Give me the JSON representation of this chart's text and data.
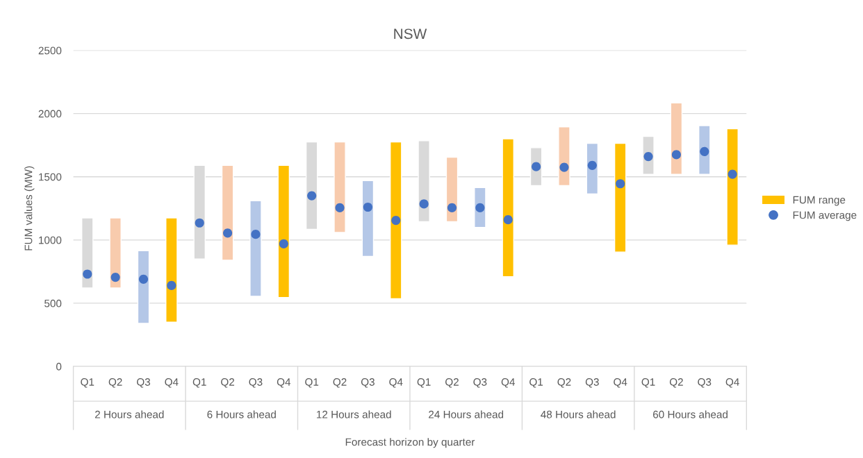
{
  "chart_data": {
    "type": "bar",
    "title": "NSW",
    "xlabel": "Forecast horizon by quarter",
    "ylabel": "FUM values (MW)",
    "categories": [
      "Q1",
      "Q2",
      "Q3",
      "Q4",
      "Q1",
      "Q2",
      "Q3",
      "Q4",
      "Q1",
      "Q2",
      "Q3",
      "Q4",
      "Q1",
      "Q2",
      "Q3",
      "Q4",
      "Q1",
      "Q2",
      "Q3",
      "Q4",
      "Q1",
      "Q2",
      "Q3",
      "Q4"
    ],
    "annotations": [
      "2 Hours ahead",
      "6 Hours ahead",
      "12 Hours ahead",
      "24 Hours ahead",
      "48 Hours ahead",
      "60 Hours ahead"
    ],
    "series": [
      {
        "name": "FUM range",
        "color": "#ffc000",
        "colors": [
          "#d9d9d9",
          "#f8cbad",
          "#b4c7e7",
          "#ffc000",
          "#d9d9d9",
          "#f8cbad",
          "#b4c7e7",
          "#ffc000",
          "#d9d9d9",
          "#f8cbad",
          "#b4c7e7",
          "#ffc000",
          "#d9d9d9",
          "#f8cbad",
          "#b4c7e7",
          "#ffc000",
          "#d9d9d9",
          "#f8cbad",
          "#b4c7e7",
          "#ffc000",
          "#d9d9d9",
          "#f8cbad",
          "#b4c7e7",
          "#ffc000"
        ],
        "base": [
          620,
          620,
          340,
          350,
          850,
          840,
          555,
          545,
          1085,
          1060,
          870,
          535,
          1145,
          1145,
          1100,
          710,
          1430,
          1430,
          1365,
          905,
          1520,
          1520,
          1520,
          960
        ],
        "values": [
          555,
          555,
          575,
          825,
          740,
          750,
          755,
          1045,
          690,
          715,
          600,
          1240,
          640,
          510,
          315,
          1090,
          300,
          465,
          400,
          860,
          300,
          565,
          385,
          920
        ]
      },
      {
        "name": "FUM average",
        "type": "scatter",
        "color": "#4472c4",
        "marker": "circle",
        "values": [
          730,
          705,
          690,
          640,
          1135,
          1055,
          1045,
          970,
          1350,
          1255,
          1260,
          1155,
          1285,
          1255,
          1255,
          1160,
          1580,
          1575,
          1590,
          1445,
          1660,
          1675,
          1700,
          1520
        ]
      }
    ],
    "ylim": [
      0,
      2500
    ],
    "yticks": [
      0,
      500,
      1000,
      1500,
      2000,
      2500
    ],
    "grid": "y",
    "legend": "right"
  }
}
